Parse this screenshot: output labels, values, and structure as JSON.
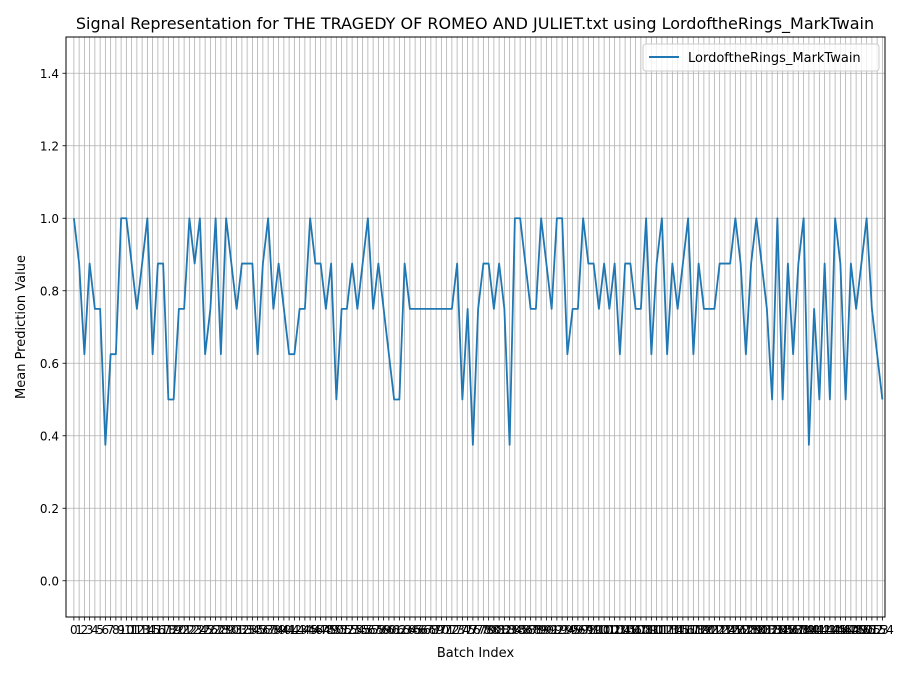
{
  "chart_data": {
    "type": "line",
    "title": "Signal Representation for THE TRAGEDY OF ROMEO AND JULIET.txt using LordoftheRings_MarkTwain",
    "xlabel": "Batch Index",
    "ylabel": "Mean Prediction Value",
    "ylim": [
      -0.1,
      1.5
    ],
    "xlim": [
      -1.5,
      154.5
    ],
    "yticks": [
      0.0,
      0.2,
      0.4,
      0.6,
      0.8,
      1.0,
      1.2,
      1.4
    ],
    "ytick_labels": [
      "0.0",
      "0.2",
      "0.4",
      "0.6",
      "0.8",
      "1.0",
      "1.2",
      "1.4"
    ],
    "grid": true,
    "legend_position": "upper right",
    "series": [
      {
        "name": "LordoftheRings_MarkTwain",
        "color": "#1f77b4",
        "values": [
          1.0,
          0.875,
          0.625,
          0.875,
          0.75,
          0.75,
          0.375,
          0.625,
          0.625,
          1.0,
          1.0,
          0.875,
          0.75,
          0.875,
          1.0,
          0.625,
          0.875,
          0.875,
          0.5,
          0.5,
          0.75,
          0.75,
          1.0,
          0.875,
          1.0,
          0.625,
          0.75,
          1.0,
          0.625,
          1.0,
          0.875,
          0.75,
          0.875,
          0.875,
          0.875,
          0.625,
          0.875,
          1.0,
          0.75,
          0.875,
          0.75,
          0.625,
          0.625,
          0.75,
          0.75,
          1.0,
          0.875,
          0.875,
          0.75,
          0.875,
          0.5,
          0.75,
          0.75,
          0.875,
          0.75,
          0.875,
          1.0,
          0.75,
          0.875,
          0.75,
          0.625,
          0.5,
          0.5,
          0.875,
          0.75,
          0.75,
          0.75,
          0.75,
          0.75,
          0.75,
          0.75,
          0.75,
          0.75,
          0.875,
          0.5,
          0.75,
          0.375,
          0.75,
          0.875,
          0.875,
          0.75,
          0.875,
          0.75,
          0.375,
          1.0,
          1.0,
          0.875,
          0.75,
          0.75,
          1.0,
          0.875,
          0.75,
          1.0,
          1.0,
          0.625,
          0.75,
          0.75,
          1.0,
          0.875,
          0.875,
          0.75,
          0.875,
          0.75,
          0.875,
          0.625,
          0.875,
          0.875,
          0.75,
          0.75,
          1.0,
          0.625,
          0.875,
          1.0,
          0.625,
          0.875,
          0.75,
          0.875,
          1.0,
          0.625,
          0.875,
          0.75,
          0.75,
          0.75,
          0.875,
          0.875,
          0.875,
          1.0,
          0.875,
          0.625,
          0.875,
          1.0,
          0.875,
          0.75,
          0.5,
          1.0,
          0.5,
          0.875,
          0.625,
          0.875,
          1.0,
          0.375,
          0.75,
          0.5,
          0.875,
          0.5,
          1.0,
          0.875,
          0.5,
          0.875,
          0.75,
          0.875,
          1.0,
          0.75,
          0.625,
          0.5
        ]
      }
    ]
  }
}
